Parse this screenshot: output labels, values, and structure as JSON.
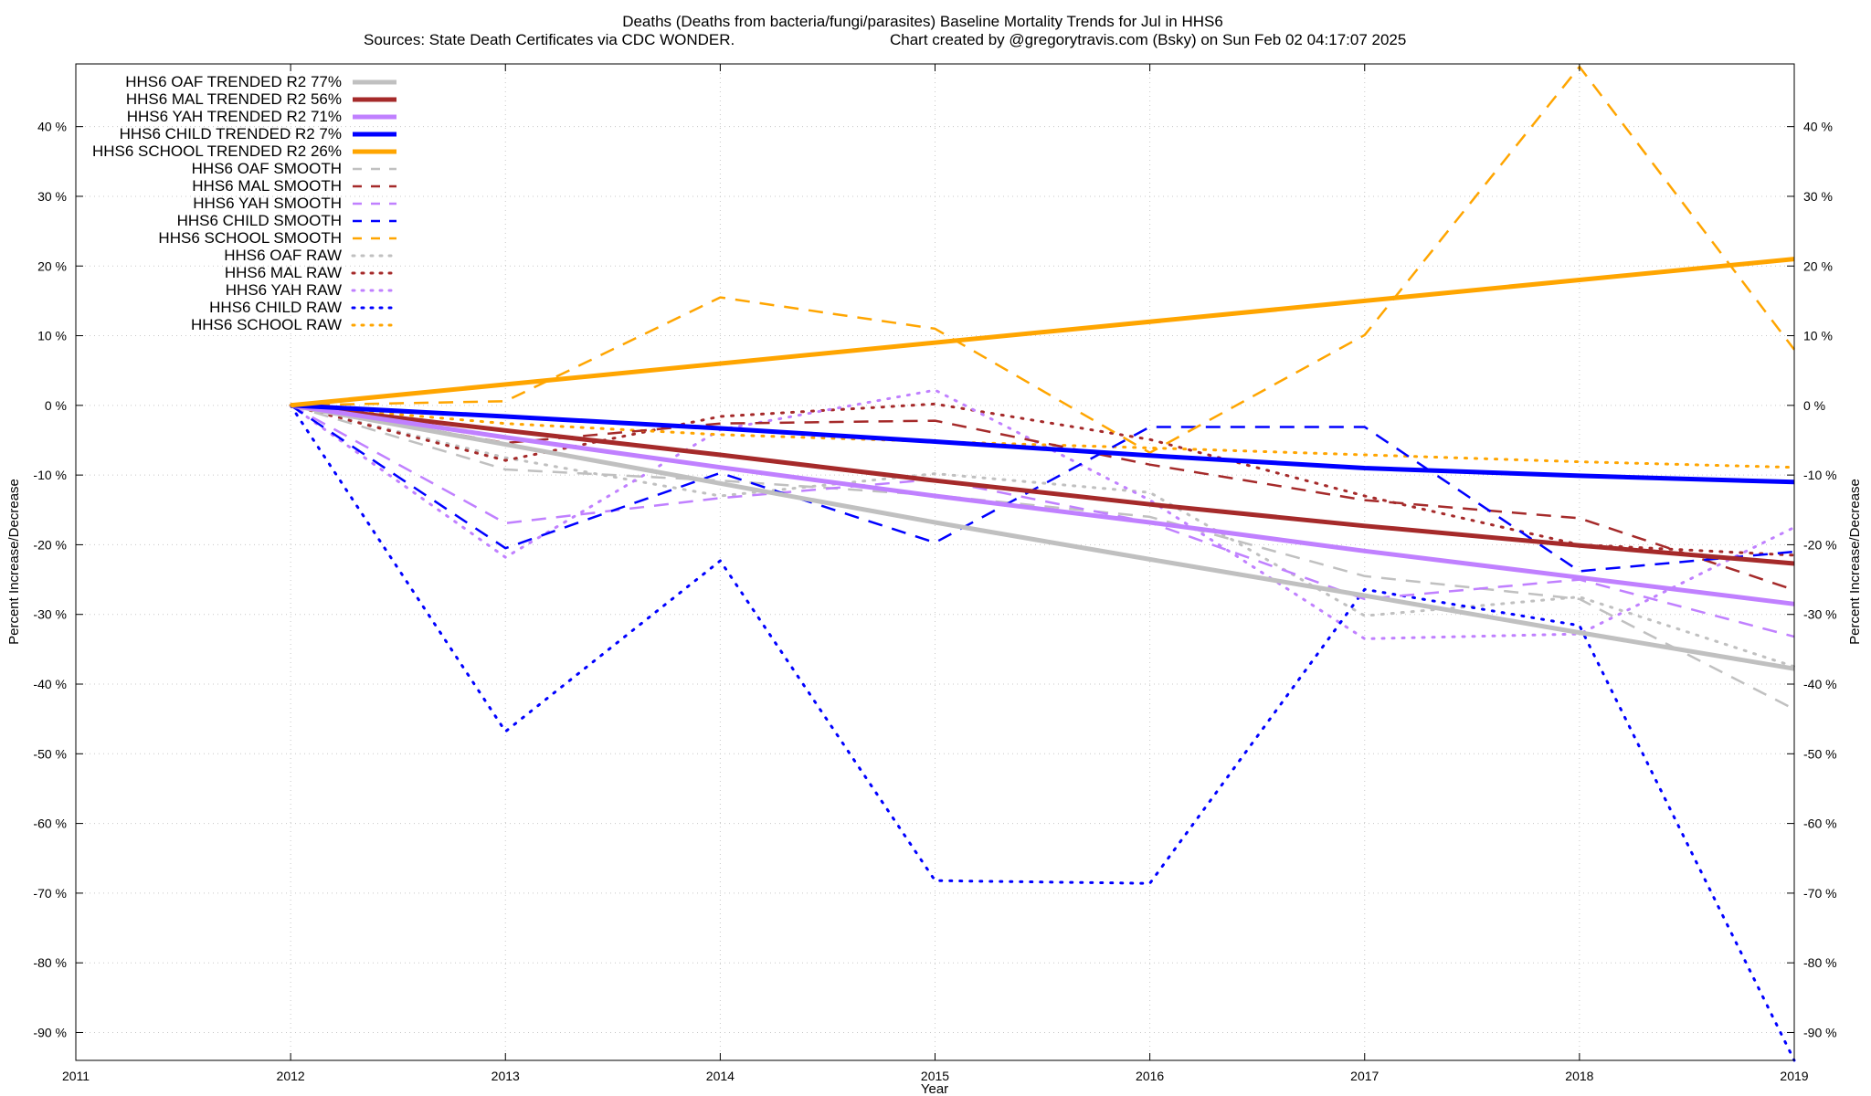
{
  "chart_data": {
    "type": "line",
    "title_line1": "Deaths (Deaths from bacteria/fungi/parasites)  Baseline Mortality Trends for Jul in HHS6",
    "title_line2_left": "Sources: State Death Certificates via CDC WONDER.",
    "title_line2_right": "Chart created by @gregorytravis.com (Bsky) on Sun Feb 02 04:17:07 2025",
    "xlabel": "Year",
    "ylabel_left": "Percent Increase/Decrease",
    "ylabel_right": "Percent Increase/Decrease",
    "xlim": [
      2011,
      2019
    ],
    "ylim": [
      -94,
      49
    ],
    "grid": true,
    "legend_position": "top-left",
    "x_ticks": [
      "2011",
      "2012",
      "2013",
      "2014",
      "2015",
      "2016",
      "2017",
      "2018",
      "2019"
    ],
    "y_ticks": [
      40,
      30,
      20,
      10,
      0,
      -10,
      -20,
      -30,
      -40,
      -50,
      -60,
      -70,
      -80,
      -90
    ],
    "y_tick_labels": [
      "40 %",
      "30 %",
      "20 %",
      "10 %",
      "0 %",
      "-10 %",
      "-20 %",
      "-30 %",
      "-40 %",
      "-50 %",
      "-60 %",
      "-70 %",
      "-80 %",
      "-90 %"
    ],
    "series": [
      {
        "name": "HHS6 OAF TRENDED R2  77%",
        "style": "solid",
        "color": "#c0c0c0",
        "x": [
          2012,
          2013,
          2014,
          2015,
          2016,
          2017,
          2018,
          2019
        ],
        "y": [
          0,
          -5.6,
          -11.2,
          -16.8,
          -22.1,
          -27.3,
          -32.6,
          -37.8
        ]
      },
      {
        "name": "HHS6 MAL TRENDED R2  56%",
        "style": "solid",
        "color": "#a52a2a",
        "x": [
          2012,
          2013,
          2014,
          2015,
          2016,
          2017,
          2018,
          2019
        ],
        "y": [
          0,
          -3.6,
          -7.1,
          -10.8,
          -14.2,
          -17.3,
          -20.1,
          -22.7
        ]
      },
      {
        "name": "HHS6 YAH TRENDED R2  71%",
        "style": "solid",
        "color": "#c080ff",
        "x": [
          2012,
          2013,
          2014,
          2015,
          2016,
          2017,
          2018,
          2019
        ],
        "y": [
          0,
          -4.6,
          -8.9,
          -13.0,
          -16.8,
          -20.9,
          -24.7,
          -28.5
        ]
      },
      {
        "name": "HHS6 CHILD TRENDED R2   7%",
        "style": "solid",
        "color": "#0000ff",
        "x": [
          2012,
          2013,
          2014,
          2015,
          2016,
          2017,
          2018,
          2019
        ],
        "y": [
          0,
          -1.6,
          -3.3,
          -5.2,
          -7.2,
          -9.0,
          -10.1,
          -11.0
        ]
      },
      {
        "name": "HHS6 SCHOOL TRENDED R2  26%",
        "style": "solid",
        "color": "#ffa500",
        "x": [
          2012,
          2019
        ],
        "y": [
          0,
          21.0
        ]
      },
      {
        "name": "HHS6 OAF SMOOTH",
        "style": "dashed",
        "color": "#c0c0c0",
        "x": [
          2012,
          2013,
          2014,
          2015,
          2016,
          2017,
          2018,
          2019
        ],
        "y": [
          0,
          -9.2,
          -10.8,
          -12.9,
          -16.0,
          -24.5,
          -27.8,
          -43.6
        ]
      },
      {
        "name": "HHS6 MAL SMOOTH",
        "style": "dashed",
        "color": "#a52a2a",
        "x": [
          2012,
          2013,
          2014,
          2015,
          2016,
          2017,
          2018,
          2019
        ],
        "y": [
          0,
          -5.4,
          -2.6,
          -2.2,
          -8.5,
          -13.6,
          -16.2,
          -26.5
        ]
      },
      {
        "name": "HHS6 YAH SMOOTH",
        "style": "dashed",
        "color": "#c080ff",
        "x": [
          2012,
          2013,
          2014,
          2015,
          2016,
          2017,
          2018,
          2019
        ],
        "y": [
          0,
          -16.9,
          -13.3,
          -10.6,
          -16.8,
          -27.8,
          -25.0,
          -33.2
        ]
      },
      {
        "name": "HHS6 CHILD SMOOTH",
        "style": "dashed",
        "color": "#0000ff",
        "x": [
          2012,
          2013,
          2014,
          2015,
          2016,
          2017,
          2018,
          2019
        ],
        "y": [
          0,
          -20.5,
          -9.7,
          -19.7,
          -3.1,
          -3.1,
          -23.8,
          -21.0
        ]
      },
      {
        "name": "HHS6 SCHOOL SMOOTH",
        "style": "dashed",
        "color": "#ffa500",
        "x": [
          2012,
          2013,
          2014,
          2015,
          2016,
          2017,
          2018,
          2019
        ],
        "y": [
          0,
          0.6,
          15.5,
          11.0,
          -6.8,
          10.1,
          48.6,
          8.0
        ]
      },
      {
        "name": "HHS6 OAF RAW",
        "style": "dotted",
        "color": "#c0c0c0",
        "x": [
          2012,
          2013,
          2014,
          2015,
          2016,
          2017,
          2018,
          2019
        ],
        "y": [
          0,
          -7.5,
          -13.0,
          -9.8,
          -12.5,
          -30.2,
          -27.5,
          -37.5
        ]
      },
      {
        "name": "HHS6 MAL RAW",
        "style": "dotted",
        "color": "#a52a2a",
        "x": [
          2012,
          2013,
          2014,
          2015,
          2016,
          2017,
          2018,
          2019
        ],
        "y": [
          0,
          -7.9,
          -1.6,
          0.2,
          -4.9,
          -13.0,
          -20.0,
          -21.5
        ]
      },
      {
        "name": "HHS6 YAH RAW",
        "style": "dotted",
        "color": "#c080ff",
        "x": [
          2012,
          2013,
          2014,
          2015,
          2016,
          2017,
          2018,
          2019
        ],
        "y": [
          0,
          -21.8,
          -3.5,
          2.2,
          -13.6,
          -33.5,
          -32.8,
          -17.5
        ]
      },
      {
        "name": "HHS6 CHILD RAW",
        "style": "dotted",
        "color": "#0000ff",
        "x": [
          2012,
          2013,
          2014,
          2015,
          2016,
          2017,
          2018,
          2019
        ],
        "y": [
          0,
          -46.8,
          -22.3,
          -68.2,
          -68.6,
          -26.4,
          -31.6,
          -94.0
        ]
      },
      {
        "name": "HHS6 SCHOOL RAW",
        "style": "dotted",
        "color": "#ffa500",
        "x": [
          2012,
          2013,
          2014,
          2015,
          2016,
          2017,
          2018,
          2019
        ],
        "y": [
          0,
          -2.6,
          -4.2,
          -5.2,
          -6.1,
          -7.1,
          -8.1,
          -8.9
        ]
      }
    ]
  }
}
